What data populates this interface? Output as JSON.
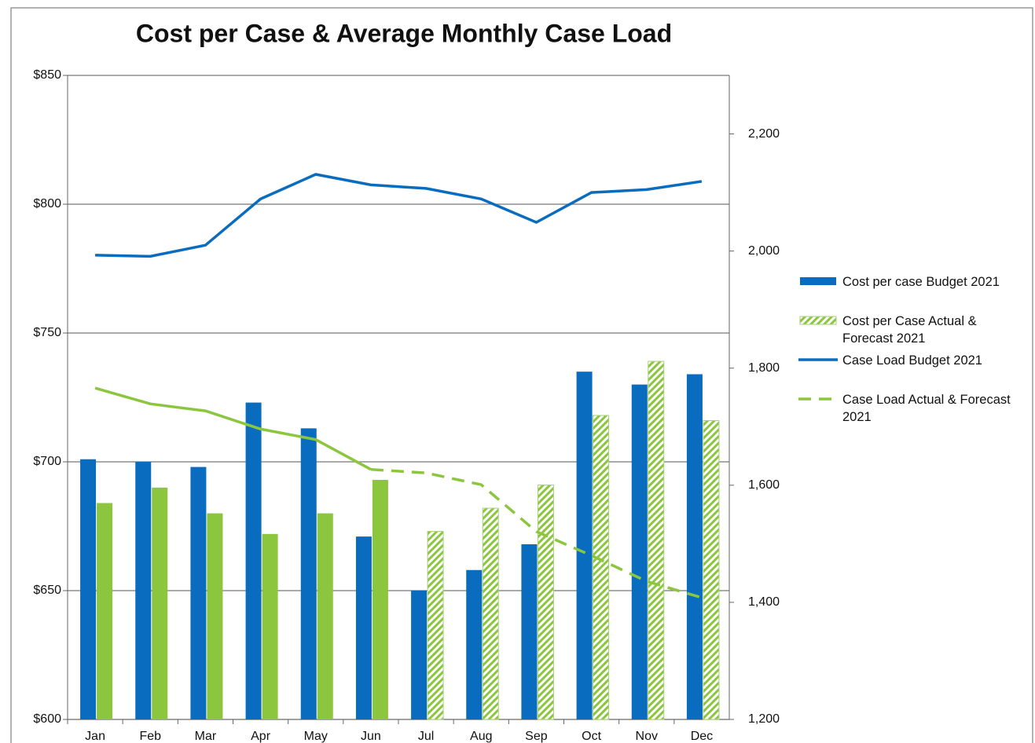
{
  "chart_data": {
    "type": "bar-line",
    "title": "Cost per Case & Average Monthly Case Load",
    "categories": [
      "Jan",
      "Feb",
      "Mar",
      "Apr",
      "May",
      "Jun",
      "Jul",
      "Aug",
      "Sep",
      "Oct",
      "Nov",
      "Dec"
    ],
    "forecast_start": "Jul",
    "series": [
      {
        "name": "Cost per case Budget 2021",
        "type": "bar",
        "color": "#0a6cbf",
        "values": [
          701,
          700,
          698,
          723,
          713,
          671,
          650,
          658,
          668,
          735,
          730,
          734
        ]
      },
      {
        "name": "Cost per Case Actual & Forecast 2021",
        "type": "bar",
        "color": "#8cc63f",
        "values": [
          684,
          690,
          680,
          672,
          680,
          693,
          673,
          682,
          691,
          718,
          739,
          716
        ]
      },
      {
        "name": "Case Load Budget 2021",
        "type": "line",
        "axis": "y2",
        "color": "#0a6cbf",
        "values": [
          1993,
          1991,
          2010,
          2089,
          2131,
          2113,
          2107,
          2089,
          2049,
          2100,
          2105,
          2119
        ]
      },
      {
        "name": "Case Load Actual & Forecast 2021",
        "type": "line",
        "axis": "y2",
        "color": "#8cc63f",
        "values": [
          1766,
          1739,
          1727,
          1696,
          1678,
          1627,
          1621,
          1601,
          1521,
          1480,
          1436,
          1408
        ]
      }
    ],
    "ylim": [
      600,
      850
    ],
    "yticks": [
      {
        "value": 600,
        "label": "$600"
      },
      {
        "value": 650,
        "label": "$650"
      },
      {
        "value": 700,
        "label": "$700"
      },
      {
        "value": 750,
        "label": "$750"
      },
      {
        "value": 800,
        "label": "$800"
      },
      {
        "value": 850,
        "label": "$850"
      }
    ],
    "y2lim": [
      1200,
      2300
    ],
    "y2ticks": [
      {
        "value": 1200,
        "label": "1,200"
      },
      {
        "value": 1400,
        "label": "1,400"
      },
      {
        "value": 1600,
        "label": "1,600"
      },
      {
        "value": 1800,
        "label": "1,800"
      },
      {
        "value": 2000,
        "label": "2,000"
      },
      {
        "value": 2200,
        "label": "2,200"
      }
    ],
    "grid": true,
    "legend": "right"
  }
}
